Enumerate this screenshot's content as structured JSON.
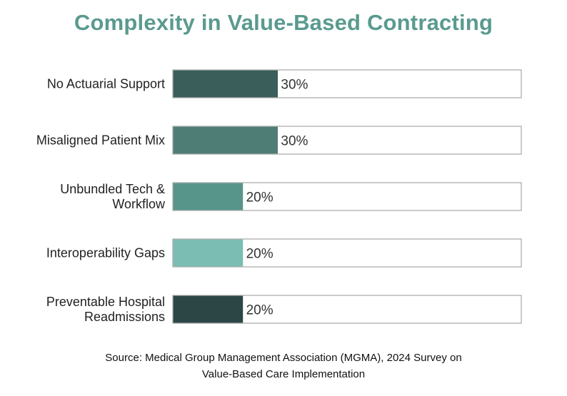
{
  "chart_data": {
    "type": "bar",
    "orientation": "horizontal",
    "title": "Complexity in Value-Based Contracting",
    "categories": [
      [
        "No Actuarial Support"
      ],
      [
        "Misaligned Patient Mix"
      ],
      [
        "Unbundled Tech &",
        "Workflow"
      ],
      [
        "Interoperability Gaps"
      ],
      [
        "Preventable Hospital",
        "Readmissions"
      ]
    ],
    "values": [
      30,
      30,
      20,
      20,
      20
    ],
    "value_labels": [
      "30%",
      "30%",
      "20%",
      "20%",
      "20%"
    ],
    "xlim": [
      0,
      100
    ],
    "colors": [
      "#3a5e5a",
      "#4e7d76",
      "#57948a",
      "#7bbcb3",
      "#2c4646"
    ],
    "grid": false,
    "legend": "none"
  },
  "source": {
    "line1": "Source: Medical Group Management Association (MGMA), 2024 Survey on",
    "line2": "Value-Based Care Implementation"
  }
}
